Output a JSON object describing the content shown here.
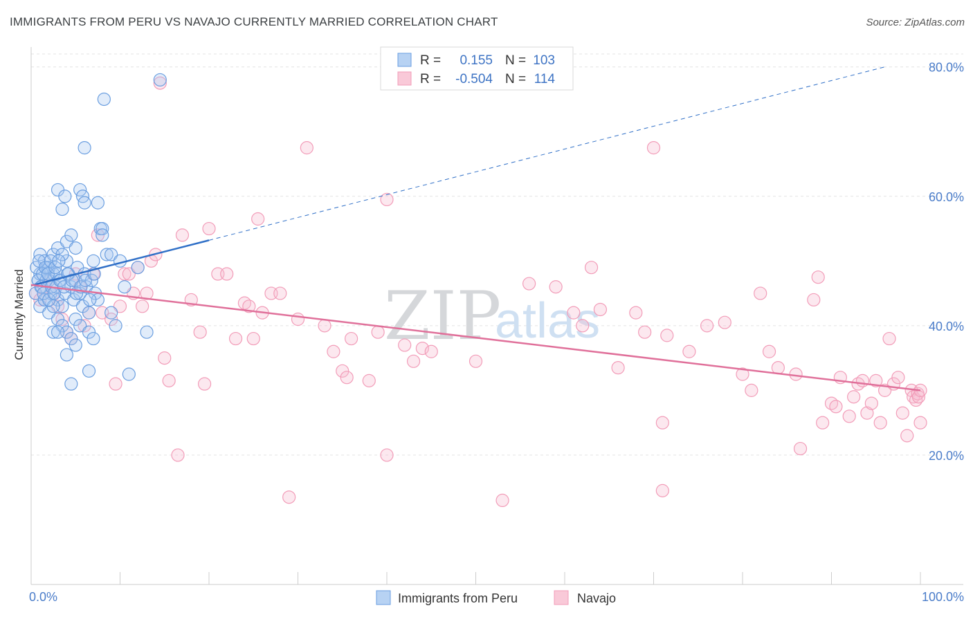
{
  "title": "IMMIGRANTS FROM PERU VS NAVAJO CURRENTLY MARRIED CORRELATION CHART",
  "source": "Source: ZipAtlas.com",
  "watermark": {
    "zip": "ZIP",
    "atlas": "atlas"
  },
  "colors": {
    "blue": "#6a9ee0",
    "blue_line": "#2f6fc7",
    "pink": "#f29cb8",
    "pink_line": "#e0709a"
  },
  "legend": {
    "r_label": "R =",
    "n_label": "N =",
    "rows": [
      {
        "r": "0.155",
        "n": "103"
      },
      {
        "r": "-0.504",
        "n": "114"
      }
    ]
  },
  "chart_data": {
    "type": "scatter",
    "title": "IMMIGRANTS FROM PERU VS NAVAJO CURRENTLY MARRIED CORRELATION CHART",
    "xlabel": "",
    "ylabel": "Currently Married",
    "xlim": [
      0,
      100
    ],
    "ylim": [
      0,
      82
    ],
    "x_tick_labels": [
      "0.0%",
      "100.0%"
    ],
    "y_ticks": [
      20,
      40,
      60,
      80
    ],
    "y_tick_labels": [
      "20.0%",
      "40.0%",
      "60.0%",
      "80.0%"
    ],
    "series": [
      {
        "name": "Immigrants from Peru",
        "color": "#6a9ee0",
        "r": 0.155,
        "n": 103,
        "trend": {
          "x0": 0,
          "y0": 46.2,
          "x1": 20,
          "y1": 53.2,
          "dashed_to_x": 96,
          "dashed_to_y": 80
        },
        "points": [
          [
            0.5,
            45
          ],
          [
            0.8,
            47
          ],
          [
            1,
            48
          ],
          [
            1.2,
            46
          ],
          [
            1.5,
            44
          ],
          [
            1.8,
            49
          ],
          [
            2,
            47
          ],
          [
            2.2,
            45
          ],
          [
            2.5,
            48
          ],
          [
            2.8,
            46
          ],
          [
            3,
            44
          ],
          [
            3.2,
            47
          ],
          [
            3.5,
            43
          ],
          [
            3.8,
            45
          ],
          [
            4,
            50
          ],
          [
            4.2,
            48
          ],
          [
            4.5,
            46
          ],
          [
            4.8,
            44
          ],
          [
            5,
            47
          ],
          [
            5.2,
            49
          ],
          [
            5.5,
            45
          ],
          [
            5.8,
            43
          ],
          [
            6,
            48
          ],
          [
            6.2,
            46
          ],
          [
            6.5,
            42
          ],
          [
            6.8,
            47
          ],
          [
            7,
            50
          ],
          [
            7.2,
            45
          ],
          [
            7.5,
            44
          ],
          [
            1,
            51
          ],
          [
            1.5,
            50
          ],
          [
            2,
            49
          ],
          [
            2.5,
            51
          ],
          [
            3,
            52
          ],
          [
            3.5,
            51
          ],
          [
            4,
            53
          ],
          [
            4.5,
            54
          ],
          [
            5,
            52
          ],
          [
            1,
            43
          ],
          [
            1.5,
            44
          ],
          [
            2,
            42
          ],
          [
            2.5,
            43
          ],
          [
            3,
            41
          ],
          [
            3.5,
            40
          ],
          [
            4,
            39
          ],
          [
            4.5,
            38
          ],
          [
            5,
            41
          ],
          [
            5.5,
            40
          ],
          [
            3,
            61
          ],
          [
            3.5,
            58
          ],
          [
            3.8,
            60
          ],
          [
            5.5,
            61
          ],
          [
            5.8,
            60
          ],
          [
            6,
            59
          ],
          [
            7.5,
            59
          ],
          [
            7.8,
            55
          ],
          [
            8,
            55
          ],
          [
            8,
            54
          ],
          [
            8.5,
            51
          ],
          [
            6,
            67.5
          ],
          [
            8.2,
            75
          ],
          [
            14.5,
            78
          ],
          [
            9,
            51
          ],
          [
            10,
            50
          ],
          [
            10.5,
            46
          ],
          [
            12,
            49
          ],
          [
            13,
            39
          ],
          [
            9,
            42
          ],
          [
            9.5,
            40
          ],
          [
            11,
            32.5
          ],
          [
            6.5,
            33
          ],
          [
            4.5,
            31
          ],
          [
            4,
            35.5
          ],
          [
            5,
            37
          ],
          [
            6.5,
            39
          ],
          [
            7,
            38
          ],
          [
            2.5,
            39
          ],
          [
            3,
            39
          ],
          [
            0.8,
            47
          ],
          [
            1.1,
            46
          ],
          [
            1.4,
            45
          ],
          [
            1.7,
            47
          ],
          [
            2,
            44
          ],
          [
            2.3,
            46
          ],
          [
            2.6,
            45
          ],
          [
            2.9,
            48
          ],
          [
            3.3,
            47
          ],
          [
            3.7,
            46
          ],
          [
            4.1,
            48
          ],
          [
            4.6,
            47
          ],
          [
            5.1,
            45
          ],
          [
            5.6,
            46
          ],
          [
            6.1,
            47
          ],
          [
            6.6,
            44
          ],
          [
            7.1,
            48
          ],
          [
            0.6,
            49
          ],
          [
            0.9,
            50
          ],
          [
            1.3,
            48
          ],
          [
            1.6,
            49
          ],
          [
            1.9,
            48
          ],
          [
            2.2,
            50
          ],
          [
            2.7,
            49
          ],
          [
            3.1,
            50
          ]
        ]
      },
      {
        "name": "Navajo",
        "color": "#f29cb8",
        "r": -0.504,
        "n": 114,
        "trend": {
          "x0": 0,
          "y0": 46.3,
          "x1": 100,
          "y1": 30
        },
        "points": [
          [
            0.5,
            45
          ],
          [
            1,
            44
          ],
          [
            1.5,
            46
          ],
          [
            2,
            47
          ],
          [
            2.5,
            45
          ],
          [
            3,
            43
          ],
          [
            3.5,
            41
          ],
          [
            4,
            39
          ],
          [
            4.5,
            38
          ],
          [
            5,
            48
          ],
          [
            5.5,
            46
          ],
          [
            6,
            40
          ],
          [
            6.5,
            42
          ],
          [
            7,
            48
          ],
          [
            7.5,
            54
          ],
          [
            8,
            42
          ],
          [
            9,
            41
          ],
          [
            9.5,
            31
          ],
          [
            10,
            43
          ],
          [
            10.5,
            48
          ],
          [
            11,
            48
          ],
          [
            11.5,
            45
          ],
          [
            12,
            49
          ],
          [
            12.5,
            43
          ],
          [
            13,
            45
          ],
          [
            13.5,
            50
          ],
          [
            14,
            51
          ],
          [
            14.5,
            77.5
          ],
          [
            15,
            35
          ],
          [
            15.5,
            31.5
          ],
          [
            16.5,
            20
          ],
          [
            17,
            54
          ],
          [
            18,
            44
          ],
          [
            19,
            39
          ],
          [
            19.5,
            31
          ],
          [
            20,
            55
          ],
          [
            21,
            48
          ],
          [
            22,
            48
          ],
          [
            23,
            38
          ],
          [
            24,
            43.5
          ],
          [
            24.5,
            43
          ],
          [
            25,
            38
          ],
          [
            25.5,
            56.5
          ],
          [
            26,
            42
          ],
          [
            27,
            45
          ],
          [
            28,
            45
          ],
          [
            29,
            13.5
          ],
          [
            30,
            41
          ],
          [
            31,
            67.5
          ],
          [
            33,
            40
          ],
          [
            34,
            36
          ],
          [
            35,
            33
          ],
          [
            35.5,
            32
          ],
          [
            36,
            38
          ],
          [
            38,
            31.5
          ],
          [
            39,
            39
          ],
          [
            40,
            59.5
          ],
          [
            40,
            20
          ],
          [
            42,
            37
          ],
          [
            43,
            34.5
          ],
          [
            44,
            36.5
          ],
          [
            45,
            36
          ],
          [
            50,
            34.5
          ],
          [
            53,
            13
          ],
          [
            56,
            46.5
          ],
          [
            59,
            46
          ],
          [
            61,
            42
          ],
          [
            62,
            40
          ],
          [
            63,
            49
          ],
          [
            64,
            42.5
          ],
          [
            66,
            33.5
          ],
          [
            68,
            42
          ],
          [
            69,
            39
          ],
          [
            70,
            67.5
          ],
          [
            71,
            25
          ],
          [
            71,
            14.5
          ],
          [
            71.5,
            38.5
          ],
          [
            74,
            36
          ],
          [
            76,
            40
          ],
          [
            78,
            40.5
          ],
          [
            80,
            32.5
          ],
          [
            81,
            30
          ],
          [
            82,
            45
          ],
          [
            83,
            36
          ],
          [
            84,
            33.5
          ],
          [
            86,
            32.5
          ],
          [
            86.5,
            21
          ],
          [
            88,
            44
          ],
          [
            88.5,
            47.5
          ],
          [
            89,
            25
          ],
          [
            90,
            28
          ],
          [
            90.5,
            27.5
          ],
          [
            91,
            32
          ],
          [
            92,
            26
          ],
          [
            92.5,
            29
          ],
          [
            93,
            31
          ],
          [
            93.5,
            31.5
          ],
          [
            94,
            26.5
          ],
          [
            94.5,
            28
          ],
          [
            95,
            31.5
          ],
          [
            95.5,
            25
          ],
          [
            96,
            30
          ],
          [
            96.5,
            38
          ],
          [
            97,
            31
          ],
          [
            97.5,
            32
          ],
          [
            98,
            26.5
          ],
          [
            98.5,
            23
          ],
          [
            99,
            30
          ],
          [
            99.2,
            29
          ],
          [
            99.5,
            28.5
          ],
          [
            99.7,
            29.5
          ],
          [
            100,
            25
          ],
          [
            99.8,
            29
          ],
          [
            100,
            30
          ]
        ]
      }
    ]
  },
  "bottom_legend": [
    {
      "label": "Immigrants from Peru"
    },
    {
      "label": "Navajo"
    }
  ]
}
